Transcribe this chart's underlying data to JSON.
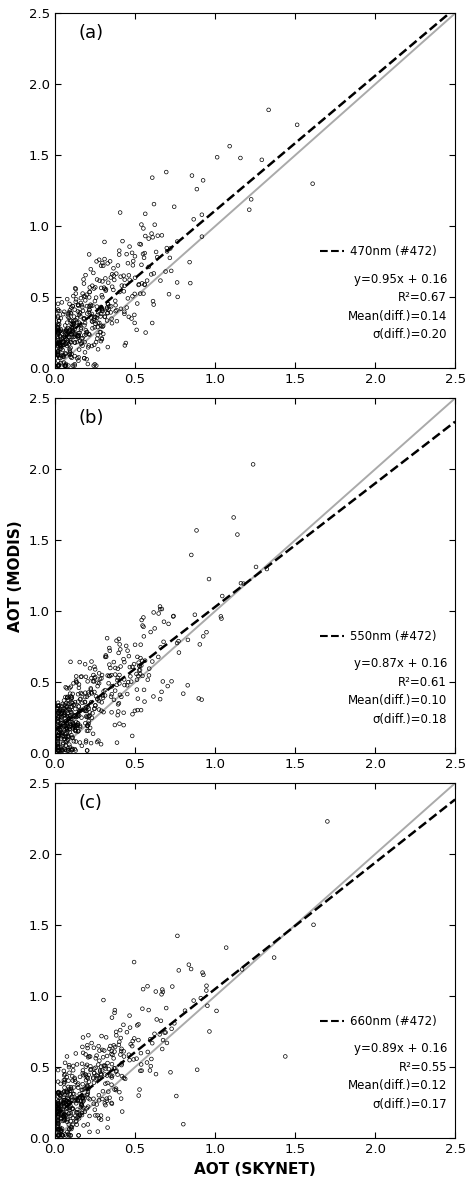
{
  "panels": [
    {
      "label": "(a)",
      "slope": 0.95,
      "intercept": 0.16,
      "r2": 0.67,
      "mean_diff": "0.14",
      "sigma_diff": "0.20",
      "wavelength": "470nm (#472)",
      "seed": 101
    },
    {
      "label": "(b)",
      "slope": 0.87,
      "intercept": 0.16,
      "r2": 0.61,
      "mean_diff": "0.10",
      "sigma_diff": "0.18",
      "wavelength": "550nm (#472)",
      "seed": 202
    },
    {
      "label": "(c)",
      "slope": 0.89,
      "intercept": 0.16,
      "r2": 0.55,
      "mean_diff": "0.12",
      "sigma_diff": "0.17",
      "wavelength": "660nm (#472)",
      "seed": 303
    }
  ],
  "xlim": [
    0.0,
    2.5
  ],
  "ylim": [
    0.0,
    2.5
  ],
  "xticks": [
    0.0,
    0.5,
    1.0,
    1.5,
    2.0,
    2.5
  ],
  "yticks": [
    0.0,
    0.5,
    1.0,
    1.5,
    2.0,
    2.5
  ],
  "xlabel": "AOT (SKYNET)",
  "ylabel": "AOT (MODIS)",
  "n_points": 472,
  "scatter_color": "black",
  "scatter_marker": "o",
  "scatter_size": 7,
  "scatter_facecolor": "none",
  "scatter_linewidth": 0.5,
  "regression_color": "black",
  "regression_linestyle": "--",
  "regression_linewidth": 1.8,
  "oneto1_color": "#aaaaaa",
  "oneto1_linewidth": 1.4,
  "legend_fontsize": 8.5,
  "label_fontsize": 13,
  "tick_fontsize": 9.5,
  "axis_label_fontsize": 11,
  "background_color": "#ffffff"
}
